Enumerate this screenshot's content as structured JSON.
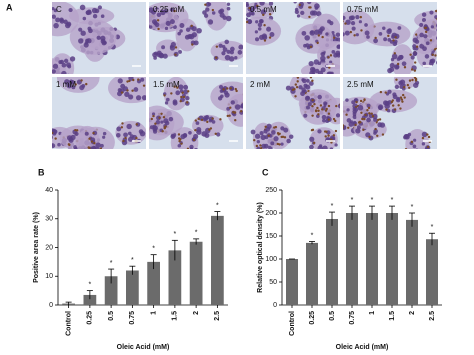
{
  "figure": {
    "panels": [
      "A",
      "B",
      "C"
    ],
    "micrograph_labels": [
      "C",
      "0.25 mM",
      "0.5 mM",
      "0.75 mM",
      "1 mM",
      "1.5 mM",
      "2 mM",
      "2.5 mM"
    ]
  },
  "chart_data": [
    {
      "type": "bar",
      "ylabel": "Positive area rate (%)",
      "xlabel": "Oleic Acid (mM)",
      "categories": [
        "Control",
        "0.25",
        "0.5",
        "0.75",
        "1",
        "1.5",
        "2",
        "2.5"
      ],
      "values": [
        0.5,
        3.5,
        10,
        12,
        15,
        19,
        22,
        31
      ],
      "errors": [
        0.5,
        1.5,
        2.5,
        1.5,
        2.5,
        3.5,
        1,
        1.5
      ],
      "significance": [
        null,
        "*",
        "*",
        "*",
        "*",
        "*",
        "*",
        "*"
      ],
      "color": "#6b6b6b",
      "ylim": [
        0,
        40
      ],
      "yticks": [
        0,
        10,
        20,
        30,
        40
      ]
    },
    {
      "type": "bar",
      "ylabel": "Relative optical density (%)",
      "xlabel": "Oleic Acid (mM)",
      "categories": [
        "Control",
        "0.25",
        "0.5",
        "0.75",
        "1",
        "1.5",
        "2",
        "2.5"
      ],
      "values": [
        100,
        135,
        187,
        200,
        200,
        200,
        185,
        143
      ],
      "errors": [
        0,
        3,
        15,
        15,
        15,
        15,
        15,
        13
      ],
      "significance": [
        null,
        "*",
        "*",
        "*",
        "*",
        "*",
        "*",
        "*"
      ],
      "color": "#6b6b6b",
      "ylim": [
        0,
        250
      ],
      "yticks": [
        0,
        50,
        100,
        150,
        200,
        250
      ]
    }
  ]
}
